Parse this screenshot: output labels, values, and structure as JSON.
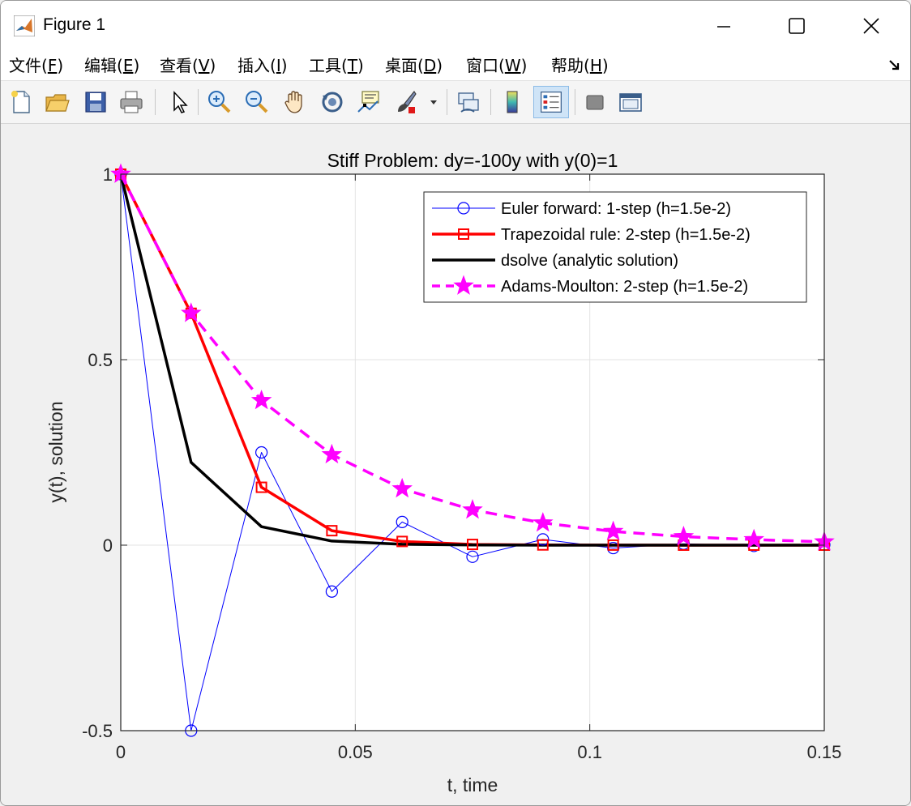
{
  "window": {
    "title": "Figure 1",
    "controls": {
      "minimize": "minimize",
      "maximize": "maximize",
      "close": "close"
    }
  },
  "menu": {
    "items": [
      {
        "pre": "文件(",
        "key": "F",
        "post": ")"
      },
      {
        "pre": "编辑(",
        "key": "E",
        "post": ")"
      },
      {
        "pre": "查看(",
        "key": "V",
        "post": ")"
      },
      {
        "pre": "插入(",
        "key": "I",
        "post": ")"
      },
      {
        "pre": "工具(",
        "key": "T",
        "post": ")"
      },
      {
        "pre": "桌面(",
        "key": "D",
        "post": ")"
      },
      {
        "pre": "窗口(",
        "key": "W",
        "post": ")"
      },
      {
        "pre": "帮助(",
        "key": "H",
        "post": ")"
      }
    ]
  },
  "toolbar": {
    "icons": [
      "new-file-icon",
      "open-folder-icon",
      "save-icon",
      "print-icon",
      "pointer-icon",
      "zoom-in-icon",
      "zoom-out-icon",
      "pan-hand-icon",
      "rotate-3d-icon",
      "data-cursor-icon",
      "brush-icon",
      "link-plot-icon",
      "colorbar-icon",
      "legend-icon",
      "hide-plot-tools-icon",
      "show-plot-tools-icon"
    ],
    "active": "legend-icon"
  },
  "chart_data": {
    "type": "line",
    "title": "Stiff Problem: dy=-100y with y(0)=1",
    "xlabel": "t, time",
    "ylabel": "y(t), solution",
    "xlim": [
      0,
      0.15
    ],
    "ylim": [
      -0.5,
      1
    ],
    "xticks": [
      0,
      0.05,
      0.1,
      0.15
    ],
    "xtick_labels": [
      "0",
      "0.05",
      "0.1",
      "0.15"
    ],
    "yticks": [
      -0.5,
      0,
      0.5,
      1
    ],
    "ytick_labels": [
      "-0.5",
      "0",
      "0.5",
      "1"
    ],
    "grid": true,
    "legend_position": "top-right",
    "series": [
      {
        "name": "Euler forward: 1-step (h=1.5e-2)",
        "color": "#0000ff",
        "style": "thin-solid",
        "marker": "circle",
        "x": [
          0,
          0.015,
          0.03,
          0.045,
          0.06,
          0.075,
          0.09,
          0.105,
          0.12,
          0.135,
          0.15
        ],
        "y": [
          1,
          -0.5,
          0.25,
          -0.125,
          0.0625,
          -0.03125,
          0.015625,
          -0.0078,
          0.0039,
          -0.002,
          0.001
        ]
      },
      {
        "name": "Trapezoidal rule: 2-step (h=1.5e-2)",
        "color": "#ff0000",
        "style": "thick-solid",
        "marker": "square",
        "x": [
          0,
          0.015,
          0.03,
          0.045,
          0.06,
          0.075,
          0.09,
          0.105,
          0.12,
          0.135,
          0.15
        ],
        "y": [
          1,
          0.625,
          0.156,
          0.039,
          0.01,
          0.002,
          0.0006,
          0.0002,
          0.0,
          0.0,
          0.0
        ]
      },
      {
        "name": "dsolve (analytic solution)",
        "color": "#000000",
        "style": "thick-solid",
        "marker": "none",
        "x": [
          0,
          0.015,
          0.03,
          0.045,
          0.06,
          0.075,
          0.09,
          0.105,
          0.12,
          0.135,
          0.15
        ],
        "y": [
          1,
          0.2231,
          0.0498,
          0.0111,
          0.0025,
          0.0006,
          0.0001,
          0.0,
          0.0,
          0.0,
          0.0
        ]
      },
      {
        "name": "Adams-Moulton: 2-step (h=1.5e-2)",
        "color": "#ff00ff",
        "style": "dashed",
        "marker": "star",
        "x": [
          0,
          0.015,
          0.03,
          0.045,
          0.06,
          0.075,
          0.09,
          0.105,
          0.12,
          0.135,
          0.15
        ],
        "y": [
          1,
          0.625,
          0.39,
          0.244,
          0.152,
          0.095,
          0.06,
          0.037,
          0.023,
          0.015,
          0.009
        ]
      }
    ]
  }
}
